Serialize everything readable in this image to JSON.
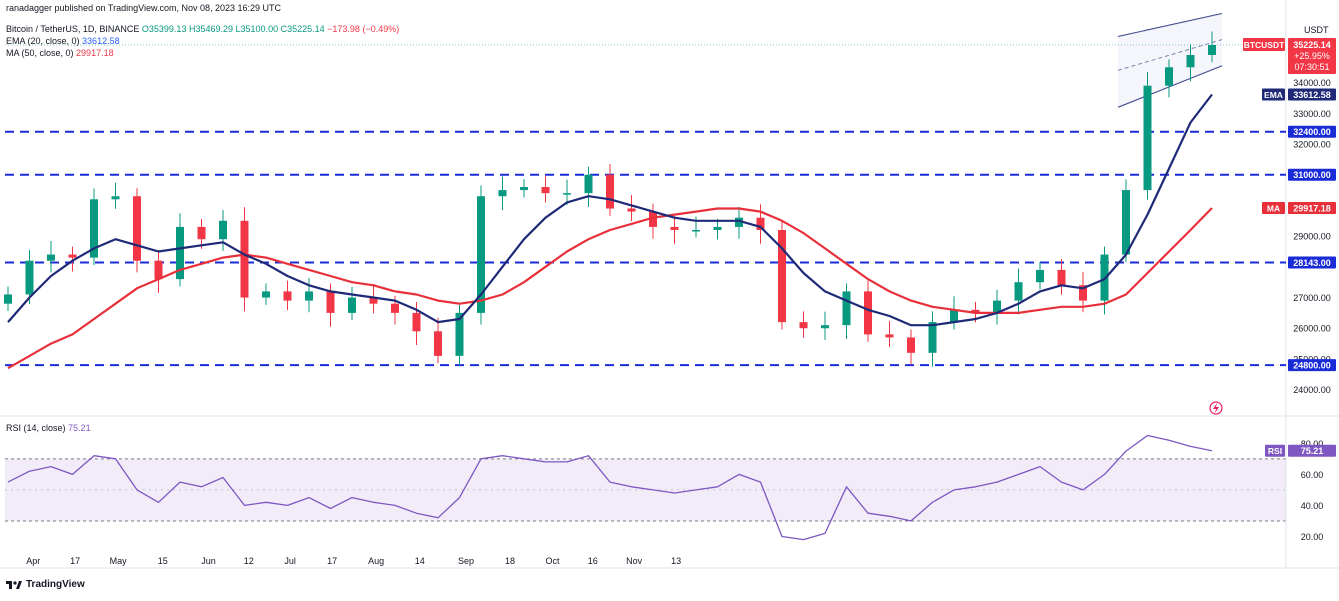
{
  "header": {
    "attribution": "ranadagger published on TradingView.com, Nov 08, 2023 16:29 UTC",
    "symbol_line": "Bitcoin / TetherUS, 1D, BINANCE",
    "ohlc": {
      "open": "O35399.13",
      "high": "H35469.29",
      "low": "L35100.00",
      "close": "C35225.14",
      "change": "−173.98 (−0.49%)"
    },
    "ema_line": {
      "label": "EMA (20, close, 0)",
      "value": "33612.58"
    },
    "ma_line": {
      "label": "MA (50, close, 0)",
      "value": "29917.18"
    },
    "rsi_line": {
      "label": "RSI (14, close)",
      "value": "75.21"
    }
  },
  "axis": {
    "currency": "USDT",
    "price_ticks": [
      "34000.00",
      "33000.00",
      "32000.00",
      "29000.00",
      "27000.00",
      "26000.00",
      "25000.00",
      "24000.00"
    ],
    "rsi_ticks": [
      "80.00",
      "60.00",
      "40.00",
      "20.00"
    ],
    "date_ticks": [
      "Apr",
      "17",
      "May",
      "15",
      "Jun",
      "12",
      "Jul",
      "17",
      "Aug",
      "14",
      "Sep",
      "18",
      "Oct",
      "16",
      "Nov",
      "13"
    ]
  },
  "badges": {
    "symbol": "BTCUSDT",
    "last_price": "35225.14",
    "last_change": "+25.95%",
    "countdown": "07:30:51",
    "ema_tag": "EMA",
    "ema_value": "33612.58",
    "ma_tag": "MA",
    "ma_value": "29917.18",
    "rsi_tag": "RSI",
    "rsi_value": "75.21",
    "levels": [
      "32400.00",
      "31000.00",
      "28143.00",
      "24800.00"
    ]
  },
  "footer": {
    "brand": "TradingView"
  },
  "colors": {
    "up": "#089981",
    "down": "#f23645",
    "ema": "#1e2a78",
    "ma": "#e8303a",
    "level": "#1a2bd8",
    "rsi": "#7e57c2",
    "rsi_band": "#ede7f6"
  },
  "chart_data": {
    "type": "line",
    "title": "Bitcoin / TetherUS, 1D, BINANCE",
    "y_scale": "linear",
    "ylim": [
      23500,
      36300
    ],
    "rsi_ylim": [
      10,
      95
    ],
    "horizontal_levels": [
      32400,
      31000,
      28143,
      24800
    ],
    "x": [
      "Mar 28",
      "Apr 1",
      "Apr 5",
      "Apr 9",
      "Apr 13",
      "Apr 17",
      "Apr 21",
      "Apr 25",
      "Apr 29",
      "May 3",
      "May 7",
      "May 11",
      "May 15",
      "May 19",
      "May 23",
      "May 27",
      "May 31",
      "Jun 4",
      "Jun 8",
      "Jun 12",
      "Jun 16",
      "Jun 20",
      "Jun 24",
      "Jun 28",
      "Jul 2",
      "Jul 6",
      "Jul 10",
      "Jul 14",
      "Jul 18",
      "Jul 22",
      "Jul 26",
      "Jul 30",
      "Aug 3",
      "Aug 7",
      "Aug 11",
      "Aug 15",
      "Aug 19",
      "Aug 23",
      "Aug 27",
      "Aug 31",
      "Sep 4",
      "Sep 8",
      "Sep 12",
      "Sep 16",
      "Sep 20",
      "Sep 24",
      "Sep 28",
      "Oct 2",
      "Oct 6",
      "Oct 10",
      "Oct 14",
      "Oct 18",
      "Oct 22",
      "Oct 26",
      "Oct 30",
      "Nov 3",
      "Nov 7"
    ],
    "series": [
      {
        "name": "BTCUSDT",
        "values": [
          27100,
          28200,
          28400,
          28300,
          30200,
          30300,
          28200,
          27600,
          29300,
          28900,
          29500,
          27000,
          27200,
          26900,
          27200,
          26500,
          27000,
          26800,
          26500,
          25900,
          25100,
          26500,
          30300,
          30500,
          30600,
          30400,
          30400,
          31000,
          29900,
          29800,
          29300,
          29200,
          29200,
          29300,
          29600,
          29200,
          26200,
          26000,
          26100,
          27200,
          25800,
          25700,
          25200,
          26200,
          26600,
          26500,
          26900,
          27500,
          27900,
          27400,
          26900,
          28400,
          30500,
          33900,
          34500,
          34900,
          35225
        ]
      },
      {
        "name": "EMA (20, close, 0)",
        "values": [
          26200,
          27000,
          27700,
          28200,
          28600,
          28900,
          28700,
          28500,
          28600,
          28700,
          28800,
          28400,
          28100,
          27700,
          27400,
          27200,
          27100,
          27000,
          26900,
          26600,
          26200,
          26300,
          27100,
          28000,
          28900,
          29600,
          30100,
          30300,
          30200,
          30000,
          29800,
          29600,
          29500,
          29500,
          29500,
          29300,
          28600,
          27800,
          27200,
          26900,
          26600,
          26400,
          26100,
          26100,
          26200,
          26300,
          26500,
          26800,
          27200,
          27400,
          27300,
          27600,
          28400,
          29700,
          31200,
          32700,
          33612.58
        ]
      },
      {
        "name": "MA (50, close, 0)",
        "values": [
          24700,
          25100,
          25500,
          25800,
          26300,
          26800,
          27300,
          27600,
          27900,
          28100,
          28300,
          28400,
          28300,
          28100,
          27900,
          27700,
          27500,
          27400,
          27200,
          27100,
          26900,
          26800,
          26900,
          27100,
          27500,
          28000,
          28500,
          28900,
          29200,
          29400,
          29600,
          29700,
          29800,
          29900,
          29900,
          29800,
          29500,
          29100,
          28600,
          28100,
          27600,
          27200,
          26900,
          26700,
          26600,
          26500,
          26500,
          26500,
          26600,
          26700,
          26700,
          26800,
          27100,
          27800,
          28500,
          29200,
          29917.18
        ]
      },
      {
        "name": "RSI (14, close)",
        "values": [
          55,
          62,
          65,
          60,
          72,
          70,
          50,
          42,
          55,
          52,
          58,
          40,
          42,
          40,
          45,
          38,
          45,
          42,
          40,
          35,
          32,
          45,
          70,
          72,
          70,
          68,
          68,
          72,
          55,
          52,
          50,
          48,
          50,
          52,
          60,
          55,
          20,
          18,
          22,
          52,
          35,
          33,
          30,
          42,
          50,
          52,
          55,
          60,
          65,
          55,
          50,
          60,
          75,
          85,
          82,
          78,
          75.21
        ]
      }
    ]
  }
}
